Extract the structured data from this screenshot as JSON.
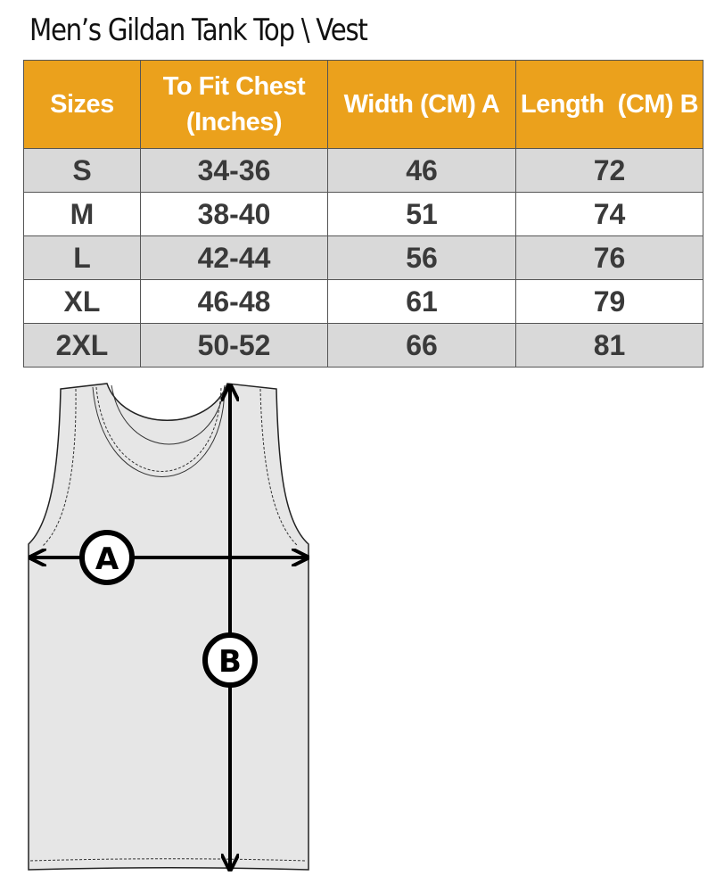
{
  "title": "Men’s Gildan Tank Top \\ Vest",
  "table": {
    "headers": [
      "Sizes",
      "To Fit Chest (Inches)",
      "Width (CM) A",
      "Length  (CM) B"
    ],
    "rows": [
      [
        "S",
        "34-36",
        "46",
        "72"
      ],
      [
        "M",
        "38-40",
        "51",
        "74"
      ],
      [
        "L",
        "42-44",
        "56",
        "76"
      ],
      [
        "XL",
        "46-48",
        "61",
        "79"
      ],
      [
        "2XL",
        "50-52",
        "66",
        "81"
      ]
    ]
  },
  "diagram": {
    "label_a": "A",
    "label_b": "B"
  },
  "colors": {
    "header": "#EBA11C",
    "row_alt": "#D9D9D9",
    "garment": "#E6E6E6"
  }
}
